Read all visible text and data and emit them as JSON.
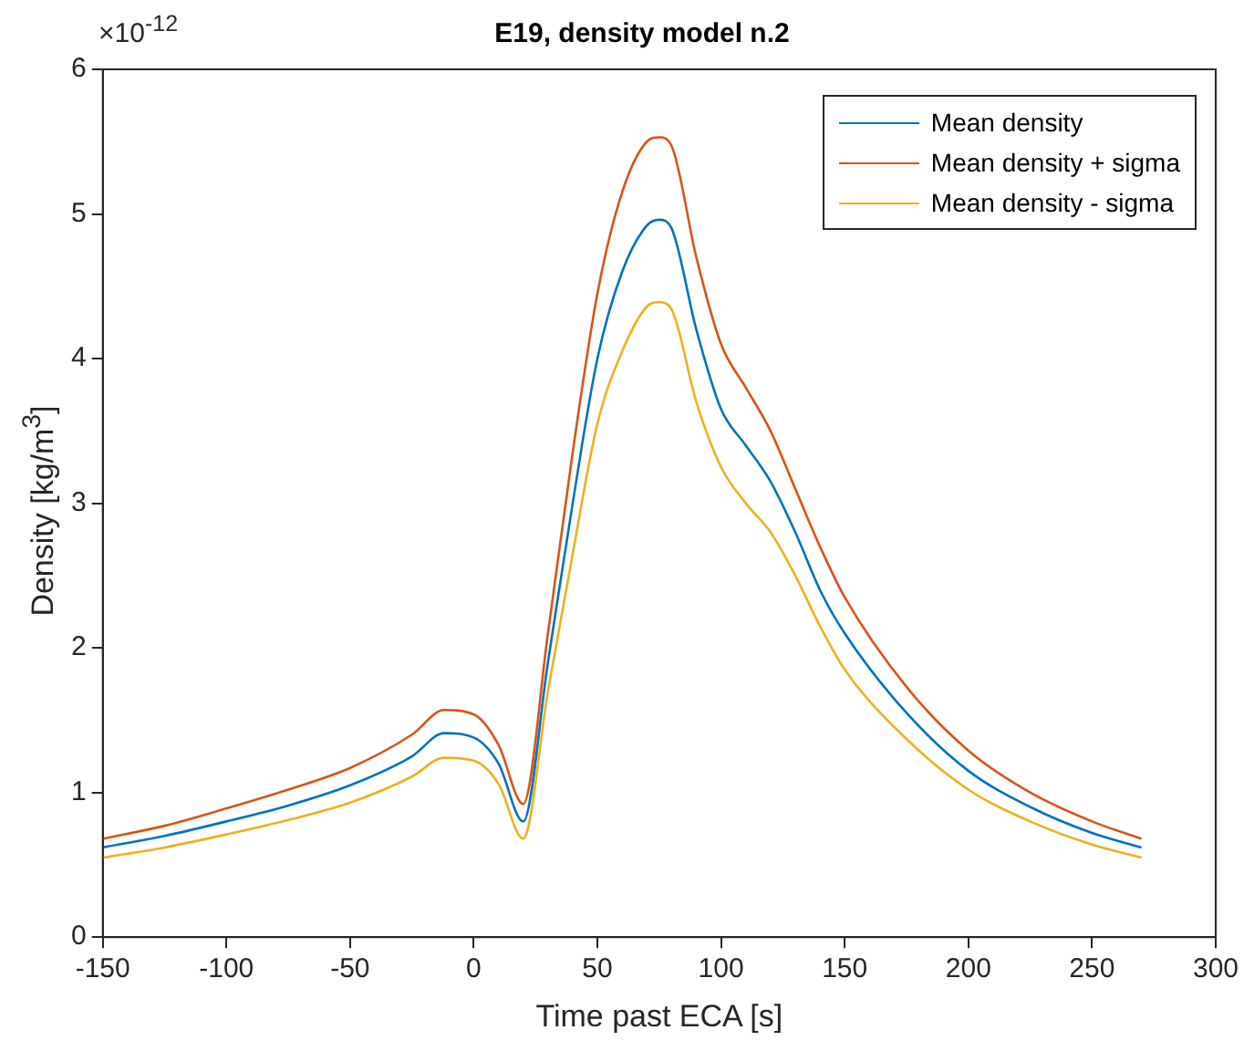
{
  "chart_data": {
    "type": "line",
    "title": "E19, density model n.2",
    "xlabel": "Time past ECA [s]",
    "ylabel": "Density [kg/m$^{3}$]",
    "annotations": [
      "×10$^{-12}$"
    ],
    "x": [
      -150,
      -125,
      -100,
      -75,
      -50,
      -25,
      -12,
      0,
      10,
      20,
      30,
      40,
      50,
      60,
      70,
      75,
      80,
      90,
      100,
      110,
      120,
      130,
      140,
      150,
      175,
      200,
      225,
      250,
      270
    ],
    "xlim": [
      -150,
      300
    ],
    "xticks": [
      -150,
      -100,
      -50,
      0,
      50,
      100,
      150,
      200,
      250,
      300
    ],
    "ylim": [
      0,
      6
    ],
    "yticks": [
      0,
      1,
      2,
      3,
      4,
      5,
      6
    ],
    "legend": "top right",
    "series": [
      {
        "name": "Mean density",
        "color": "#0072bd",
        "values": [
          0.62,
          0.7,
          0.8,
          0.91,
          1.05,
          1.25,
          1.41,
          1.38,
          1.2,
          0.8,
          1.9,
          3.0,
          4.0,
          4.6,
          4.92,
          4.96,
          4.9,
          4.2,
          3.65,
          3.4,
          3.15,
          2.8,
          2.4,
          2.1,
          1.55,
          1.15,
          0.9,
          0.72,
          0.62
        ]
      },
      {
        "name": "Mean density + sigma",
        "color": "#d95319",
        "values": [
          0.68,
          0.77,
          0.89,
          1.02,
          1.17,
          1.4,
          1.57,
          1.54,
          1.33,
          0.92,
          2.1,
          3.35,
          4.45,
          5.15,
          5.5,
          5.53,
          5.47,
          4.7,
          4.1,
          3.8,
          3.5,
          3.1,
          2.7,
          2.35,
          1.73,
          1.29,
          1.0,
          0.8,
          0.68
        ]
      },
      {
        "name": "Mean density - sigma",
        "color": "#edb120",
        "values": [
          0.55,
          0.62,
          0.71,
          0.81,
          0.93,
          1.11,
          1.24,
          1.22,
          1.06,
          0.68,
          1.7,
          2.65,
          3.55,
          4.05,
          4.36,
          4.39,
          4.34,
          3.7,
          3.25,
          3.0,
          2.8,
          2.5,
          2.15,
          1.85,
          1.37,
          1.02,
          0.8,
          0.64,
          0.55
        ]
      }
    ]
  }
}
